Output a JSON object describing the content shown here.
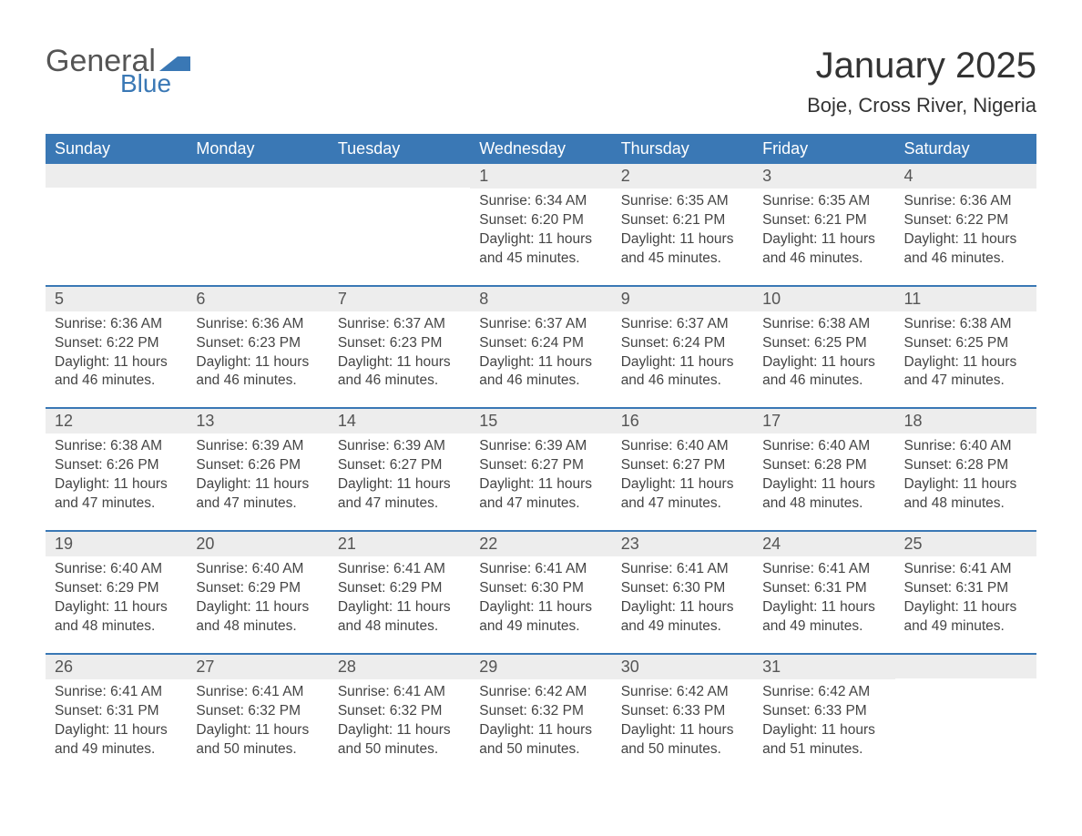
{
  "logo": {
    "text_general": "General",
    "text_blue": "Blue",
    "flag_color": "#3a78b5"
  },
  "title": "January 2025",
  "location": "Boje, Cross River, Nigeria",
  "colors": {
    "header_bg": "#3a78b5",
    "header_text": "#ffffff",
    "daynum_bg": "#ededed",
    "daynum_text": "#555555",
    "body_text": "#444444",
    "week_border": "#3a78b5",
    "page_bg": "#ffffff"
  },
  "typography": {
    "title_fontsize": 40,
    "location_fontsize": 22,
    "dayheader_fontsize": 18,
    "daynum_fontsize": 18,
    "detail_fontsize": 15.5
  },
  "day_headers": [
    "Sunday",
    "Monday",
    "Tuesday",
    "Wednesday",
    "Thursday",
    "Friday",
    "Saturday"
  ],
  "weeks": [
    [
      {
        "day": "",
        "sunrise": "",
        "sunset": "",
        "daylight": ""
      },
      {
        "day": "",
        "sunrise": "",
        "sunset": "",
        "daylight": ""
      },
      {
        "day": "",
        "sunrise": "",
        "sunset": "",
        "daylight": ""
      },
      {
        "day": "1",
        "sunrise": "Sunrise: 6:34 AM",
        "sunset": "Sunset: 6:20 PM",
        "daylight": "Daylight: 11 hours and 45 minutes."
      },
      {
        "day": "2",
        "sunrise": "Sunrise: 6:35 AM",
        "sunset": "Sunset: 6:21 PM",
        "daylight": "Daylight: 11 hours and 45 minutes."
      },
      {
        "day": "3",
        "sunrise": "Sunrise: 6:35 AM",
        "sunset": "Sunset: 6:21 PM",
        "daylight": "Daylight: 11 hours and 46 minutes."
      },
      {
        "day": "4",
        "sunrise": "Sunrise: 6:36 AM",
        "sunset": "Sunset: 6:22 PM",
        "daylight": "Daylight: 11 hours and 46 minutes."
      }
    ],
    [
      {
        "day": "5",
        "sunrise": "Sunrise: 6:36 AM",
        "sunset": "Sunset: 6:22 PM",
        "daylight": "Daylight: 11 hours and 46 minutes."
      },
      {
        "day": "6",
        "sunrise": "Sunrise: 6:36 AM",
        "sunset": "Sunset: 6:23 PM",
        "daylight": "Daylight: 11 hours and 46 minutes."
      },
      {
        "day": "7",
        "sunrise": "Sunrise: 6:37 AM",
        "sunset": "Sunset: 6:23 PM",
        "daylight": "Daylight: 11 hours and 46 minutes."
      },
      {
        "day": "8",
        "sunrise": "Sunrise: 6:37 AM",
        "sunset": "Sunset: 6:24 PM",
        "daylight": "Daylight: 11 hours and 46 minutes."
      },
      {
        "day": "9",
        "sunrise": "Sunrise: 6:37 AM",
        "sunset": "Sunset: 6:24 PM",
        "daylight": "Daylight: 11 hours and 46 minutes."
      },
      {
        "day": "10",
        "sunrise": "Sunrise: 6:38 AM",
        "sunset": "Sunset: 6:25 PM",
        "daylight": "Daylight: 11 hours and 46 minutes."
      },
      {
        "day": "11",
        "sunrise": "Sunrise: 6:38 AM",
        "sunset": "Sunset: 6:25 PM",
        "daylight": "Daylight: 11 hours and 47 minutes."
      }
    ],
    [
      {
        "day": "12",
        "sunrise": "Sunrise: 6:38 AM",
        "sunset": "Sunset: 6:26 PM",
        "daylight": "Daylight: 11 hours and 47 minutes."
      },
      {
        "day": "13",
        "sunrise": "Sunrise: 6:39 AM",
        "sunset": "Sunset: 6:26 PM",
        "daylight": "Daylight: 11 hours and 47 minutes."
      },
      {
        "day": "14",
        "sunrise": "Sunrise: 6:39 AM",
        "sunset": "Sunset: 6:27 PM",
        "daylight": "Daylight: 11 hours and 47 minutes."
      },
      {
        "day": "15",
        "sunrise": "Sunrise: 6:39 AM",
        "sunset": "Sunset: 6:27 PM",
        "daylight": "Daylight: 11 hours and 47 minutes."
      },
      {
        "day": "16",
        "sunrise": "Sunrise: 6:40 AM",
        "sunset": "Sunset: 6:27 PM",
        "daylight": "Daylight: 11 hours and 47 minutes."
      },
      {
        "day": "17",
        "sunrise": "Sunrise: 6:40 AM",
        "sunset": "Sunset: 6:28 PM",
        "daylight": "Daylight: 11 hours and 48 minutes."
      },
      {
        "day": "18",
        "sunrise": "Sunrise: 6:40 AM",
        "sunset": "Sunset: 6:28 PM",
        "daylight": "Daylight: 11 hours and 48 minutes."
      }
    ],
    [
      {
        "day": "19",
        "sunrise": "Sunrise: 6:40 AM",
        "sunset": "Sunset: 6:29 PM",
        "daylight": "Daylight: 11 hours and 48 minutes."
      },
      {
        "day": "20",
        "sunrise": "Sunrise: 6:40 AM",
        "sunset": "Sunset: 6:29 PM",
        "daylight": "Daylight: 11 hours and 48 minutes."
      },
      {
        "day": "21",
        "sunrise": "Sunrise: 6:41 AM",
        "sunset": "Sunset: 6:29 PM",
        "daylight": "Daylight: 11 hours and 48 minutes."
      },
      {
        "day": "22",
        "sunrise": "Sunrise: 6:41 AM",
        "sunset": "Sunset: 6:30 PM",
        "daylight": "Daylight: 11 hours and 49 minutes."
      },
      {
        "day": "23",
        "sunrise": "Sunrise: 6:41 AM",
        "sunset": "Sunset: 6:30 PM",
        "daylight": "Daylight: 11 hours and 49 minutes."
      },
      {
        "day": "24",
        "sunrise": "Sunrise: 6:41 AM",
        "sunset": "Sunset: 6:31 PM",
        "daylight": "Daylight: 11 hours and 49 minutes."
      },
      {
        "day": "25",
        "sunrise": "Sunrise: 6:41 AM",
        "sunset": "Sunset: 6:31 PM",
        "daylight": "Daylight: 11 hours and 49 minutes."
      }
    ],
    [
      {
        "day": "26",
        "sunrise": "Sunrise: 6:41 AM",
        "sunset": "Sunset: 6:31 PM",
        "daylight": "Daylight: 11 hours and 49 minutes."
      },
      {
        "day": "27",
        "sunrise": "Sunrise: 6:41 AM",
        "sunset": "Sunset: 6:32 PM",
        "daylight": "Daylight: 11 hours and 50 minutes."
      },
      {
        "day": "28",
        "sunrise": "Sunrise: 6:41 AM",
        "sunset": "Sunset: 6:32 PM",
        "daylight": "Daylight: 11 hours and 50 minutes."
      },
      {
        "day": "29",
        "sunrise": "Sunrise: 6:42 AM",
        "sunset": "Sunset: 6:32 PM",
        "daylight": "Daylight: 11 hours and 50 minutes."
      },
      {
        "day": "30",
        "sunrise": "Sunrise: 6:42 AM",
        "sunset": "Sunset: 6:33 PM",
        "daylight": "Daylight: 11 hours and 50 minutes."
      },
      {
        "day": "31",
        "sunrise": "Sunrise: 6:42 AM",
        "sunset": "Sunset: 6:33 PM",
        "daylight": "Daylight: 11 hours and 51 minutes."
      },
      {
        "day": "",
        "sunrise": "",
        "sunset": "",
        "daylight": ""
      }
    ]
  ]
}
